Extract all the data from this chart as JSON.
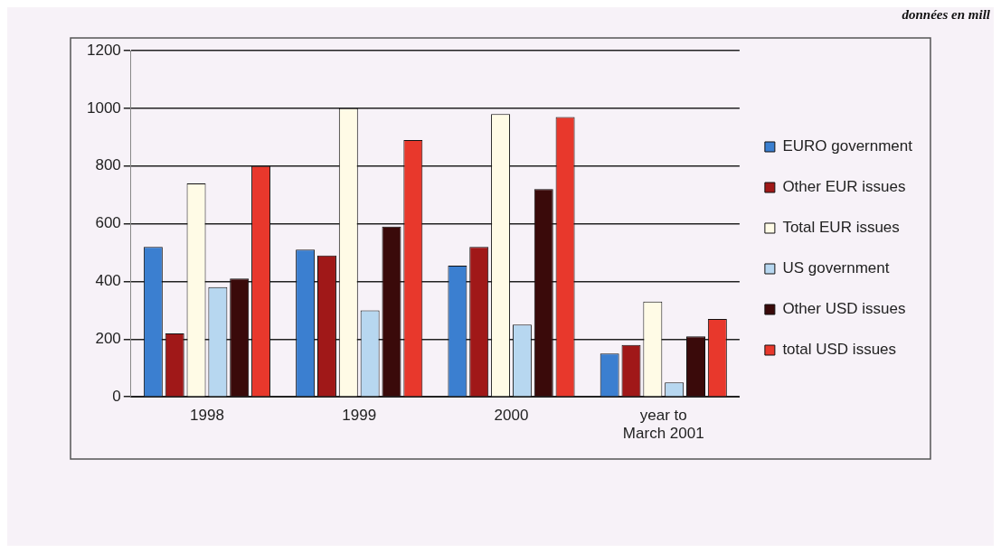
{
  "chart_data": {
    "type": "bar",
    "categories": [
      "1998",
      "1999",
      "2000",
      "year to March 2001"
    ],
    "series": [
      {
        "name": "EURO government",
        "color": "#3b7fd0",
        "values": [
          520,
          510,
          455,
          150
        ]
      },
      {
        "name": "Other EUR issues",
        "color": "#a01818",
        "values": [
          220,
          490,
          520,
          180
        ]
      },
      {
        "name": "Total EUR issues",
        "color": "#fffbe6",
        "values": [
          740,
          1000,
          980,
          330
        ]
      },
      {
        "name": "US government",
        "color": "#b7d7f0",
        "values": [
          380,
          300,
          250,
          50
        ]
      },
      {
        "name": "Other USD issues",
        "color": "#3a0a0a",
        "values": [
          410,
          590,
          720,
          210
        ]
      },
      {
        "name": "total USD issues",
        "color": "#e8382c",
        "values": [
          800,
          890,
          970,
          270
        ]
      }
    ],
    "ylim": [
      0,
      1200
    ],
    "yticks": [
      0,
      200,
      400,
      600,
      800,
      1000,
      1200
    ],
    "grid": "y",
    "legend": "right",
    "annotations": [
      "données en mill"
    ]
  }
}
